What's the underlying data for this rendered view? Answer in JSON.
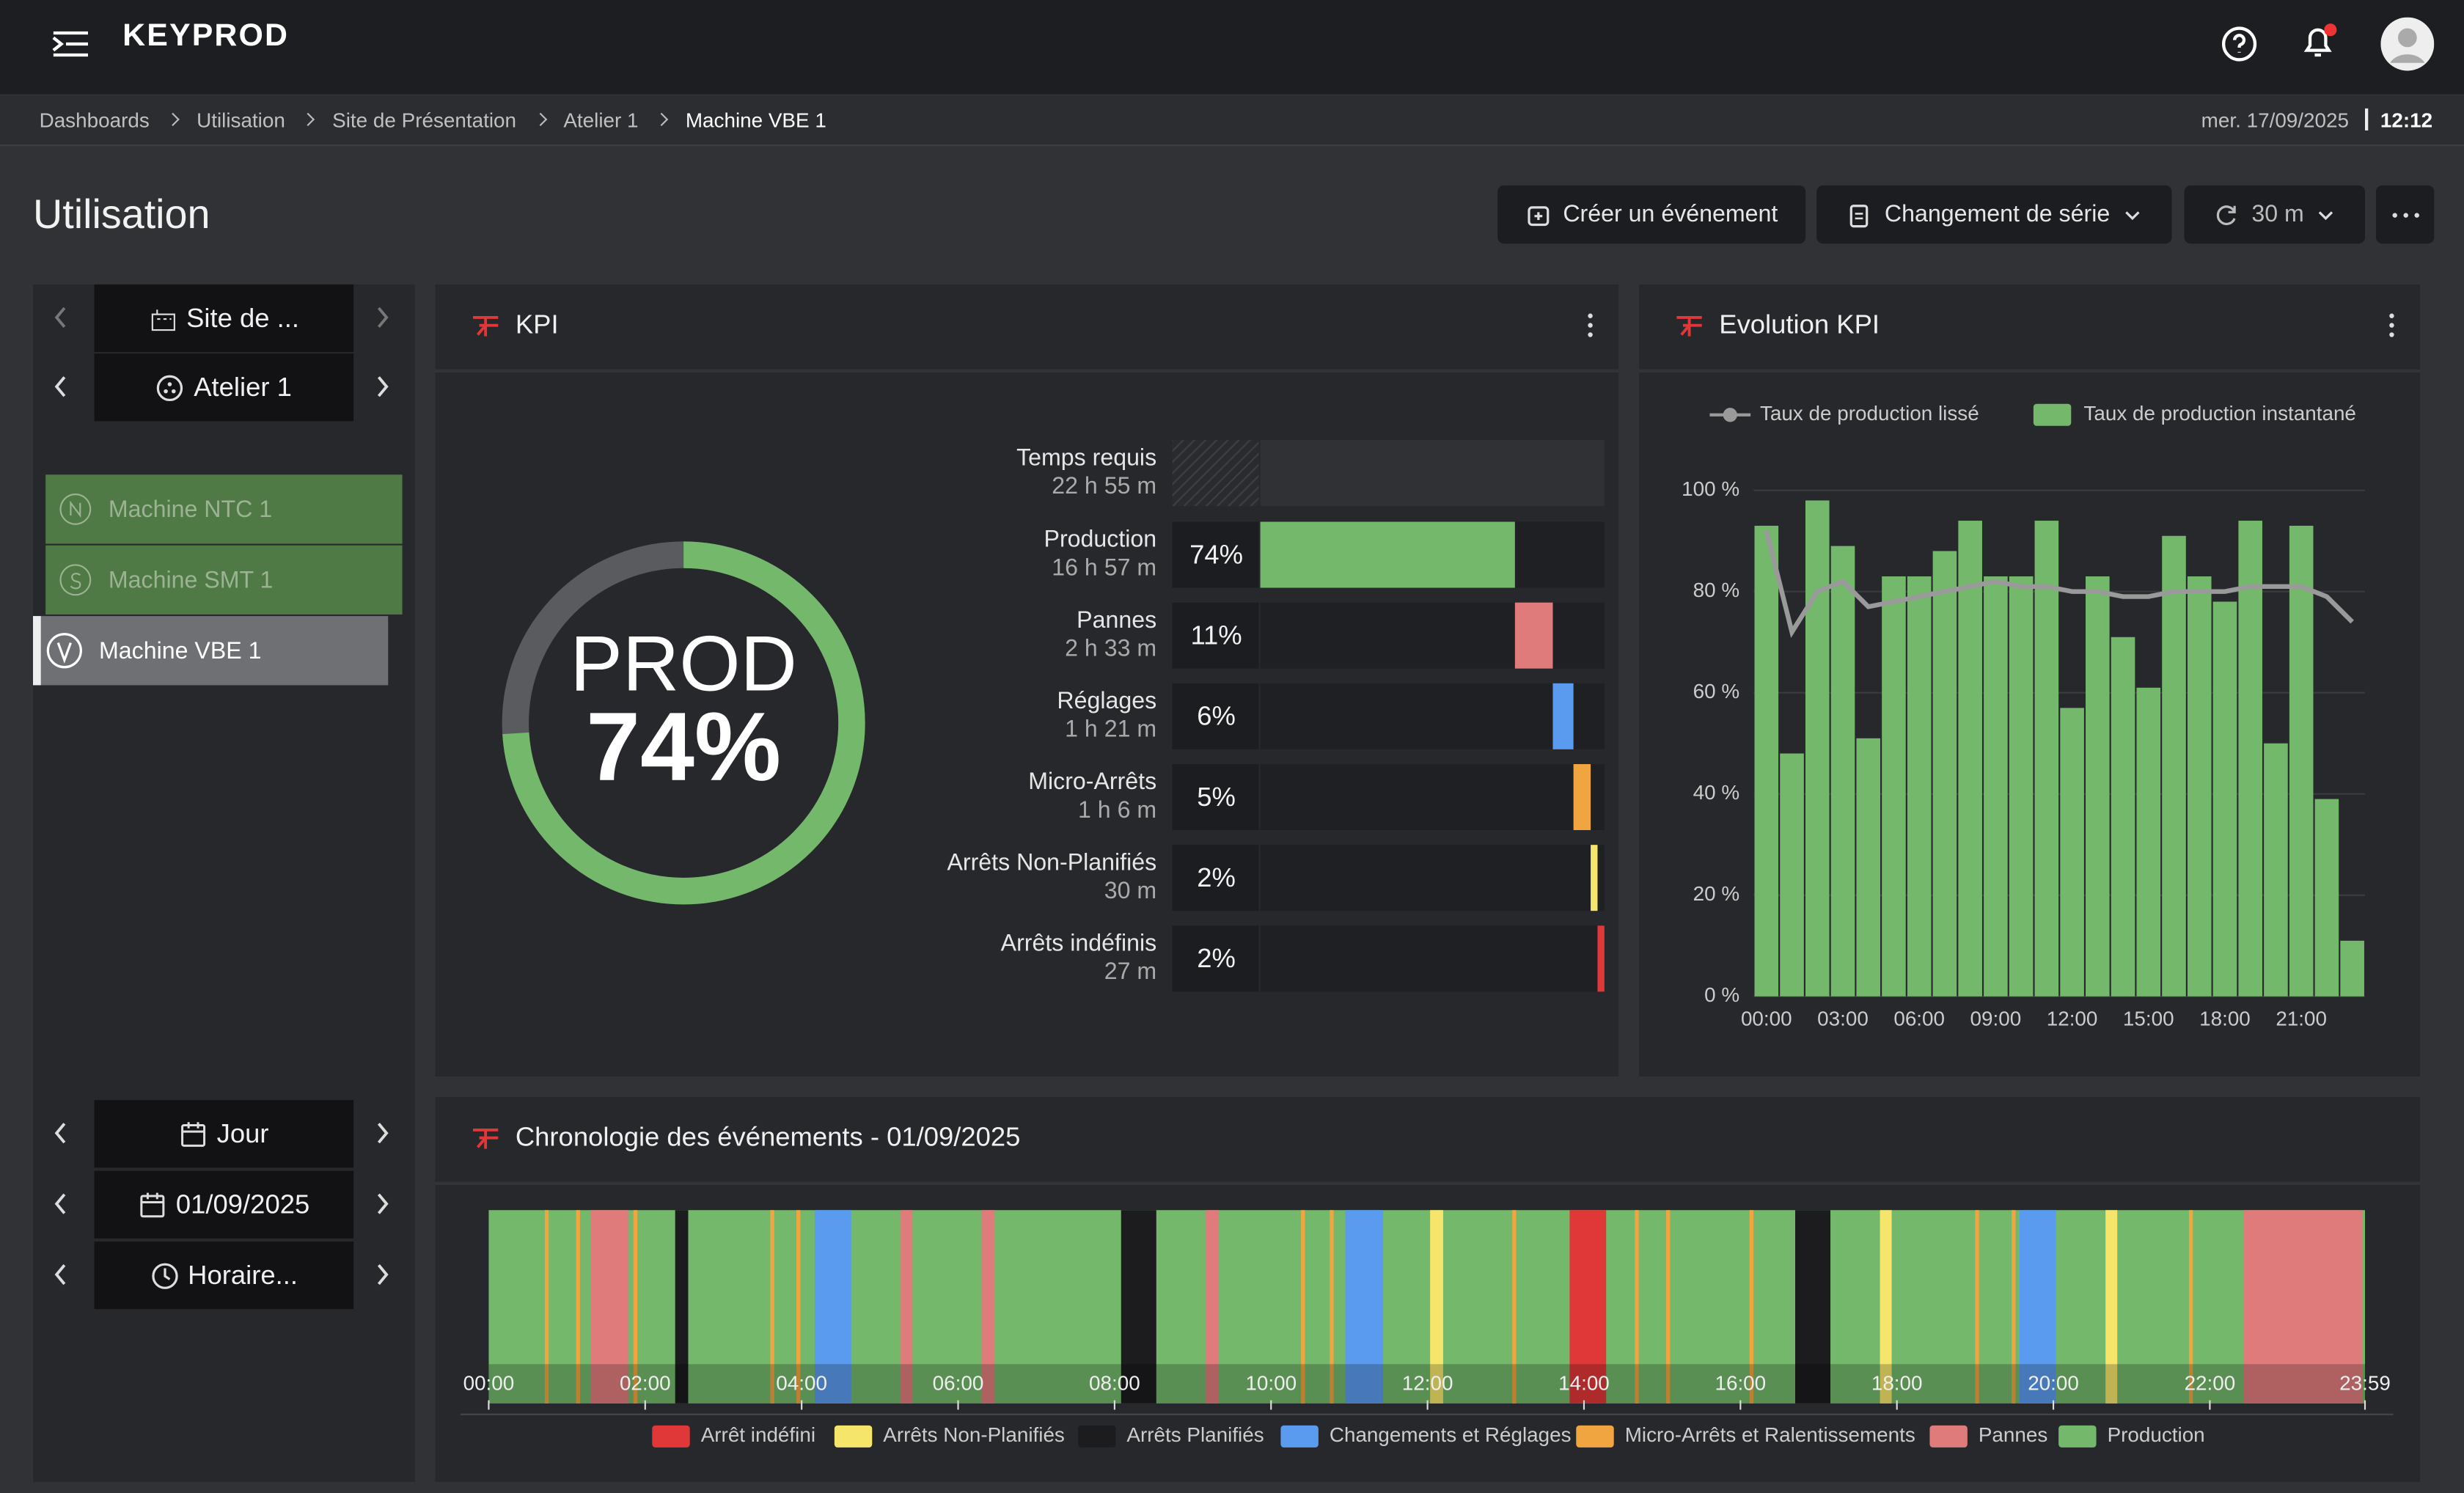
{
  "header": {
    "logo": "KEYPROD"
  },
  "breadcrumb": {
    "items": [
      "Dashboards",
      "Utilisation",
      "Site de Présentation",
      "Atelier 1",
      "Machine VBE 1"
    ],
    "date": "mer. 17/09/2025",
    "time": "12:12"
  },
  "page": {
    "title": "Utilisation",
    "actions": [
      "Créer un événement",
      "Changement de série",
      "30 m"
    ]
  },
  "sidebar": {
    "site": "Site de ...",
    "workshop": "Atelier 1",
    "machines": [
      "Machine NTC 1",
      "Machine SMT 1",
      "Machine VBE 1"
    ],
    "period": "Jour",
    "date": "01/09/2025",
    "schedule": "Horaire..."
  },
  "chart_data": [
    {
      "type": "kpi",
      "title": "KPI",
      "gauge_label": "PROD",
      "gauge_value": 74,
      "gauge_value_label": "74%",
      "gauge_color": "#74b86c",
      "required": {
        "name": "Temps requis",
        "duration": "22 h 55 m"
      },
      "categories": [
        "Production",
        "Pannes",
        "Réglages",
        "Micro-Arrêts",
        "Arrêts Non-Planifiés",
        "Arrêts indéfinis"
      ],
      "durations": [
        "16 h 57 m",
        "2 h 33 m",
        "1 h 21 m",
        "1 h 6 m",
        "30 m",
        "27 m"
      ],
      "values": [
        74,
        11,
        6,
        5,
        2,
        2
      ],
      "value_labels": [
        "74%",
        "11%",
        "6%",
        "5%",
        "2%",
        "2%"
      ],
      "colors": [
        "#74b86c",
        "#e07b7b",
        "#5b9bef",
        "#f0a540",
        "#f5e66b",
        "#e03838"
      ],
      "xlim": [
        0,
        100
      ]
    },
    {
      "type": "bar_line",
      "title": "Evolution KPI",
      "categories": [
        "00:00",
        null,
        null,
        "03:00",
        null,
        null,
        "06:00",
        null,
        null,
        "09:00",
        null,
        null,
        "12:00",
        null,
        null,
        "15:00",
        null,
        null,
        "18:00",
        null,
        null,
        "21:00",
        null,
        null
      ],
      "series": [
        {
          "name": "Taux de production lissé",
          "type": "line",
          "color": "#9a9a9a",
          "values": [
            92,
            72,
            80,
            82,
            77,
            78,
            79,
            80,
            81,
            82,
            81,
            81,
            80,
            80,
            79,
            79,
            80,
            80,
            80,
            81,
            81,
            81,
            79,
            74
          ]
        },
        {
          "name": "Taux de production instantané",
          "type": "bar",
          "color": "#74b86c",
          "values": [
            93,
            48,
            98,
            89,
            51,
            83,
            83,
            88,
            94,
            83,
            83,
            94,
            57,
            83,
            71,
            61,
            91,
            83,
            78,
            94,
            50,
            93,
            39,
            11
          ]
        }
      ],
      "ylim": [
        0,
        100
      ],
      "yticks": [
        {
          "value": 0,
          "label": "0 %"
        },
        {
          "value": 20,
          "label": "20 %"
        },
        {
          "value": 40,
          "label": "40 %"
        },
        {
          "value": 60,
          "label": "60 %"
        },
        {
          "value": 80,
          "label": "80 %"
        },
        {
          "value": 100,
          "label": "100 %"
        }
      ],
      "grid": true
    },
    {
      "type": "timeline",
      "title": "Chronologie des événements - 01/09/2025",
      "xlim": [
        0,
        1439
      ],
      "xticks": [
        {
          "value": 0,
          "label": "00:00"
        },
        {
          "value": 120,
          "label": "02:00"
        },
        {
          "value": 240,
          "label": "04:00"
        },
        {
          "value": 360,
          "label": "06:00"
        },
        {
          "value": 480,
          "label": "08:00"
        },
        {
          "value": 600,
          "label": "10:00"
        },
        {
          "value": 720,
          "label": "12:00"
        },
        {
          "value": 840,
          "label": "14:00"
        },
        {
          "value": 960,
          "label": "16:00"
        },
        {
          "value": 1080,
          "label": "18:00"
        },
        {
          "value": 1200,
          "label": "20:00"
        },
        {
          "value": 1320,
          "label": "22:00"
        },
        {
          "value": 1439,
          "label": "23:59"
        }
      ],
      "series": [
        {
          "name": "Arrêt indéfini",
          "color": "#e03838",
          "start": [
            829
          ],
          "end": [
            857
          ]
        },
        {
          "name": "Arrêts Non-Planifiés",
          "color": "#f5e66b",
          "start": [
            722,
            1067,
            1240
          ],
          "end": [
            732,
            1076,
            1249
          ]
        },
        {
          "name": "Arrêts Planifiés",
          "color": "#1c1c1e",
          "start": [
            143,
            485,
            1002
          ],
          "end": [
            153,
            512,
            1029
          ]
        },
        {
          "name": "Changements et Réglages",
          "color": "#5b9bef",
          "start": [
            250,
            657,
            1174
          ],
          "end": [
            278,
            686,
            1202
          ]
        },
        {
          "name": "Micro-Arrêts et Ralentissements",
          "color": "#f0a540",
          "start": [
            43,
            67,
            111,
            216,
            236,
            623,
            645,
            785,
            879,
            903,
            967,
            1140,
            1168,
            1304
          ],
          "end": [
            46,
            70,
            114,
            219,
            239,
            626,
            648,
            788,
            882,
            906,
            970,
            1143,
            1171,
            1307
          ]
        },
        {
          "name": "Pannes",
          "color": "#e07b7b",
          "start": [
            78,
            316,
            378,
            550,
            1346
          ],
          "end": [
            107,
            325,
            388,
            560,
            1437
          ]
        },
        {
          "name": "Production",
          "color": "#74b86c",
          "start": [
            0
          ],
          "end": [
            1439
          ]
        }
      ]
    }
  ]
}
